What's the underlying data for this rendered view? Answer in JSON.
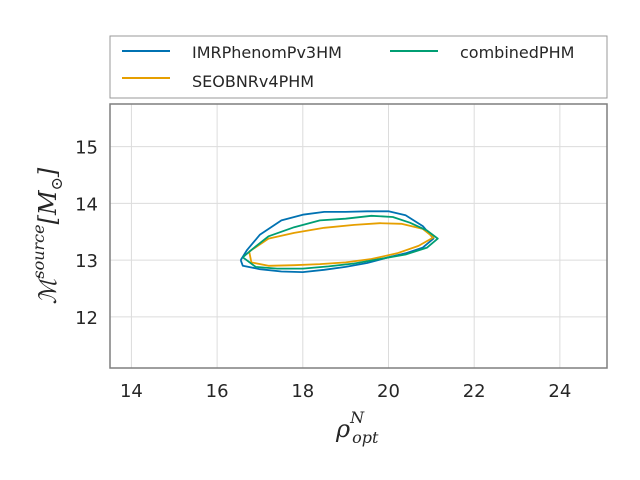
{
  "chart_data": {
    "type": "line",
    "xlabel_symbol": "ρ",
    "xlabel_sub": "opt",
    "xlabel_sup": "N",
    "ylabel_symbol": "ℳ",
    "ylabel_sup": "source",
    "ylabel_unit": "[M",
    "ylabel_unit_sub": "⊙",
    "ylabel_unit_end": "]",
    "xlim": [
      13.5,
      25.1
    ],
    "ylim": [
      11.1,
      15.75
    ],
    "xticks": [
      14,
      16,
      18,
      20,
      22,
      24
    ],
    "xtick_labels": [
      "14",
      "16",
      "18",
      "20",
      "22",
      "24"
    ],
    "yticks": [
      12,
      13,
      14,
      15
    ],
    "ytick_labels": [
      "12",
      "13",
      "14",
      "15"
    ],
    "grid": true,
    "legend_position": "top, outside",
    "series": [
      {
        "name": "IMRPhenomPv3HM",
        "color": "#0072b2",
        "x": [
          16.55,
          16.7,
          17.0,
          17.5,
          18.0,
          18.5,
          19.0,
          19.5,
          20.0,
          20.4,
          20.8,
          21.05,
          20.8,
          20.4,
          20.0,
          19.5,
          19.0,
          18.5,
          18.0,
          17.5,
          17.0,
          16.6,
          16.55
        ],
        "y": [
          13.0,
          13.18,
          13.45,
          13.7,
          13.8,
          13.85,
          13.85,
          13.86,
          13.86,
          13.79,
          13.6,
          13.38,
          13.22,
          13.12,
          13.05,
          12.95,
          12.88,
          12.83,
          12.79,
          12.8,
          12.84,
          12.9,
          13.0
        ]
      },
      {
        "name": "SEOBNRv4PHM",
        "color": "#e69f00",
        "x": [
          16.75,
          17.2,
          17.8,
          18.5,
          19.2,
          19.8,
          20.3,
          20.8,
          21.05,
          20.7,
          20.2,
          19.6,
          19.0,
          18.4,
          17.8,
          17.2,
          16.8,
          16.75
        ],
        "y": [
          13.15,
          13.38,
          13.48,
          13.57,
          13.62,
          13.65,
          13.64,
          13.55,
          13.4,
          13.25,
          13.12,
          13.02,
          12.96,
          12.93,
          12.91,
          12.9,
          12.96,
          13.15
        ]
      },
      {
        "name": "combinedPHM",
        "color": "#009e73",
        "x": [
          16.6,
          16.8,
          17.2,
          17.8,
          18.4,
          19.0,
          19.6,
          20.1,
          20.5,
          20.9,
          21.15,
          20.9,
          20.4,
          19.8,
          19.2,
          18.6,
          18.0,
          17.4,
          16.9,
          16.6
        ],
        "y": [
          13.05,
          13.18,
          13.42,
          13.58,
          13.7,
          13.73,
          13.78,
          13.76,
          13.66,
          13.52,
          13.38,
          13.22,
          13.1,
          13.02,
          12.94,
          12.89,
          12.85,
          12.85,
          12.88,
          13.05
        ]
      }
    ]
  }
}
